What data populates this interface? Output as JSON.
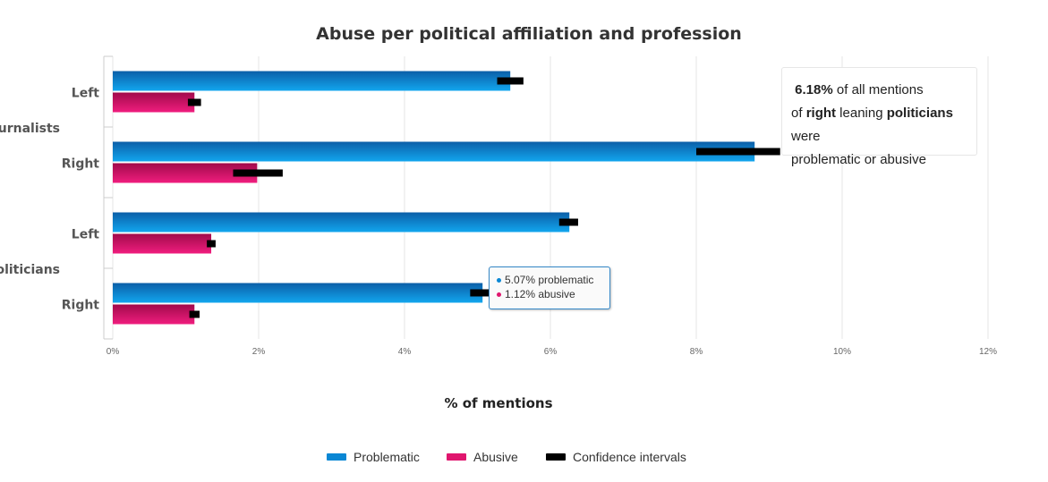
{
  "chart_data": {
    "type": "bar",
    "orientation": "horizontal",
    "title": "Abuse per political affiliation and profession",
    "xlabel": "% of mentions",
    "xlim": [
      0,
      12
    ],
    "xticks": [
      "0%",
      "2%",
      "4%",
      "6%",
      "8%",
      "10%",
      "12%"
    ],
    "groups": [
      {
        "name": "Journalists",
        "categories": [
          "Left",
          "Right"
        ]
      },
      {
        "name": "Politicians",
        "categories": [
          "Left",
          "Right"
        ]
      }
    ],
    "series": [
      {
        "name": "Problematic",
        "color": "#0a87d4",
        "values": [
          5.45,
          8.8,
          6.26,
          5.07
        ],
        "ci": [
          [
            5.27,
            5.63
          ],
          [
            8.0,
            9.15
          ],
          [
            6.12,
            6.38
          ],
          [
            4.9,
            5.25
          ]
        ]
      },
      {
        "name": "Abusive",
        "color": "#e0166e",
        "values": [
          1.12,
          1.98,
          1.35,
          1.12
        ],
        "ci": [
          [
            1.03,
            1.21
          ],
          [
            1.65,
            2.33
          ],
          [
            1.29,
            1.41
          ],
          [
            1.05,
            1.19
          ]
        ]
      }
    ],
    "legend": {
      "placement": "bottom-center",
      "items": [
        {
          "label": "Problematic",
          "color": "#0a87d4"
        },
        {
          "label": "Abusive",
          "color": "#e0166e"
        },
        {
          "label": "Confidence intervals",
          "color": "#000000"
        }
      ]
    },
    "grid": true
  },
  "annotation": {
    "value": "6.18%",
    "text1": " of all mentions",
    "text2": "of ",
    "bold1": "right",
    "text3": " leaning ",
    "bold2": "politicians",
    "text4": " were",
    "text5": "problematic or abusive"
  },
  "tooltip": {
    "line1": "5.07% problematic",
    "line2": "1.12% abusive",
    "color1": "#0a87d4",
    "color2": "#e0166e"
  }
}
